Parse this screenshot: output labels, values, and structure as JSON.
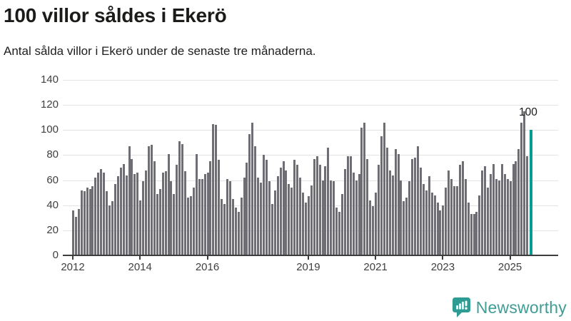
{
  "header": {
    "title": "100 villor såldes i Ekerö",
    "subtitle": "Antal sålda villor i Ekerö under de senaste tre månaderna."
  },
  "annotation": {
    "label": "100"
  },
  "chart_data": {
    "type": "bar",
    "title": "100 villor såldes i Ekerö",
    "subtitle": "Antal sålda villor i Ekerö under de senaste tre månaderna.",
    "x_unit": "month",
    "x_start": "2012-01",
    "values": [
      36,
      31,
      37,
      52,
      51,
      54,
      53,
      55,
      62,
      66,
      69,
      66,
      51,
      40,
      43,
      57,
      63,
      70,
      73,
      64,
      87,
      77,
      65,
      66,
      44,
      59,
      68,
      87,
      88,
      75,
      49,
      53,
      66,
      67,
      81,
      59,
      49,
      72,
      91,
      89,
      67,
      46,
      47,
      54,
      81,
      61,
      61,
      65,
      66,
      75,
      105,
      104,
      76,
      45,
      41,
      61,
      59,
      45,
      38,
      35,
      46,
      62,
      74,
      97,
      106,
      87,
      62,
      58,
      80,
      76,
      59,
      41,
      52,
      63,
      70,
      75,
      68,
      57,
      54,
      76,
      72,
      62,
      50,
      42,
      47,
      56,
      77,
      79,
      72,
      60,
      71,
      86,
      60,
      59,
      38,
      35,
      49,
      69,
      79,
      79,
      66,
      60,
      65,
      102,
      106,
      77,
      44,
      39,
      50,
      72,
      95,
      106,
      86,
      68,
      64,
      85,
      81,
      60,
      43,
      46,
      59,
      77,
      78,
      87,
      70,
      57,
      52,
      63,
      50,
      48,
      42,
      36,
      40,
      54,
      68,
      61,
      55,
      55,
      72,
      75,
      61,
      42,
      33,
      33,
      35,
      48,
      68,
      71,
      54,
      65,
      73,
      61,
      60,
      73,
      65,
      61,
      59,
      73,
      75,
      85,
      106,
      115,
      79,
      100
    ],
    "highlight_last_value": 100,
    "annotation_label": "100",
    "yticks": [
      0,
      20,
      40,
      60,
      80,
      100,
      120,
      140
    ],
    "ylim": [
      0,
      140
    ],
    "xticks": [
      {
        "label": "2012",
        "month_index": 0
      },
      {
        "label": "2014",
        "month_index": 24
      },
      {
        "label": "2016",
        "month_index": 48
      },
      {
        "label": "2019",
        "month_index": 84
      },
      {
        "label": "2021",
        "month_index": 108
      },
      {
        "label": "2023",
        "month_index": 132
      },
      {
        "label": "2025",
        "month_index": 156
      }
    ],
    "grid": "horizontal",
    "legend": "none",
    "colors": {
      "bar": "#6e6e74",
      "highlight": "#0a9b91",
      "axis": "#3d3d3d",
      "gridline": "#e3e3e3",
      "tick_label": "#3f3f3f",
      "annotation_text": "#1a1a1a"
    }
  },
  "footer": {
    "brand": "Newsworthy",
    "logo_color": "#2f9c93",
    "text_color": "#3e9d95"
  }
}
